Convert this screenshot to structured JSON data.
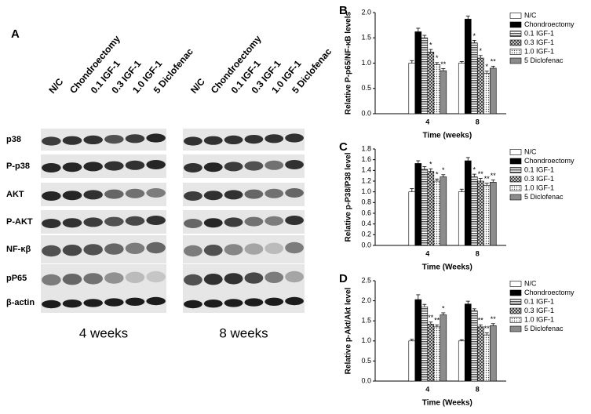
{
  "blot_panel": {
    "label": "A",
    "lanes": [
      "N/C",
      "Chondroectomy",
      "0.1 IGF-1",
      "0.3 IGF-1",
      "1.0 IGF-1",
      "5 Diclofenac"
    ],
    "rows": [
      "p38",
      "P-p38",
      "AKT",
      "P-AKT",
      "NF-κβ",
      "pP65",
      "β-actin"
    ],
    "groups": [
      "4 weeks",
      "8 weeks"
    ]
  },
  "chart_data": [
    {
      "type": "bar",
      "panel_label": "B",
      "ylabel": "Relative P-p65/NF-κB levels",
      "xlabel": "Time (weeks)",
      "categories": [
        "4",
        "8"
      ],
      "ylim": [
        0,
        2.0
      ],
      "yticks": [
        {
          "value": 0,
          "label": "0.0"
        },
        0.5,
        {
          "value": 1,
          "label": "1.0"
        },
        1.5,
        {
          "value": 2,
          "label": "2.0"
        }
      ],
      "series": [
        {
          "name": "N/C",
          "color": "#ffffff",
          "pattern": "solid",
          "values": [
            1.0,
            1.0
          ],
          "errors": [
            0.05,
            0.03
          ],
          "annotations": [
            null,
            null
          ]
        },
        {
          "name": "Chondroectomy",
          "color": "#000000",
          "pattern": "solid",
          "values": [
            1.62,
            1.87
          ],
          "errors": [
            0.07,
            0.06
          ],
          "annotations": [
            null,
            null
          ]
        },
        {
          "name": "0.1 IGF-1",
          "color": "#9a9a9a",
          "pattern": "hlines",
          "values": [
            1.5,
            1.4
          ],
          "errors": [
            0.05,
            0.05
          ],
          "annotations": [
            null,
            "*"
          ]
        },
        {
          "name": "0.3 IGF-1",
          "color": "#6a6a6a",
          "pattern": "cross",
          "values": [
            1.22,
            1.1
          ],
          "errors": [
            0.05,
            0.05
          ],
          "annotations": [
            "*",
            "*"
          ]
        },
        {
          "name": "1.0 IGF-1",
          "color": "#8a8a8a",
          "pattern": "dots",
          "values": [
            0.97,
            0.8
          ],
          "errors": [
            0.04,
            0.04
          ],
          "annotations": [
            "*",
            "*"
          ]
        },
        {
          "name": "5 Diclofenac",
          "color": "#8c8c8c",
          "pattern": "solid",
          "values": [
            0.85,
            0.9
          ],
          "errors": [
            0.04,
            0.04
          ],
          "annotations": [
            "**",
            "**"
          ]
        }
      ]
    },
    {
      "type": "bar",
      "panel_label": "C",
      "ylabel": "Relative p-P38/P38 level",
      "xlabel": "Time (Weeks)",
      "categories": [
        "4",
        "8"
      ],
      "ylim": [
        0,
        1.8
      ],
      "yticks": [
        {
          "value": 0,
          "label": "0.0"
        },
        0.2,
        0.4,
        0.6,
        0.8,
        {
          "value": 1,
          "label": "1.0"
        },
        1.2,
        1.4,
        1.6,
        1.8
      ],
      "series": [
        {
          "name": "N/C",
          "color": "#ffffff",
          "pattern": "solid",
          "values": [
            1.0,
            1.0
          ],
          "errors": [
            0.06,
            0.05
          ],
          "annotations": [
            null,
            null
          ]
        },
        {
          "name": "Chondroectomy",
          "color": "#000000",
          "pattern": "solid",
          "values": [
            1.53,
            1.58
          ],
          "errors": [
            0.05,
            0.06
          ],
          "annotations": [
            null,
            null
          ]
        },
        {
          "name": "0.1 IGF-1",
          "color": "#9a9a9a",
          "pattern": "hlines",
          "values": [
            1.42,
            1.28
          ],
          "errors": [
            0.05,
            0.05
          ],
          "annotations": [
            null,
            "*"
          ]
        },
        {
          "name": "0.3 IGF-1",
          "color": "#6a6a6a",
          "pattern": "cross",
          "values": [
            1.38,
            1.2
          ],
          "errors": [
            0.05,
            0.05
          ],
          "annotations": [
            "*",
            "**"
          ]
        },
        {
          "name": "1.0 IGF-1",
          "color": "#8a8a8a",
          "pattern": "dots",
          "values": [
            1.2,
            1.12
          ],
          "errors": [
            0.04,
            0.04
          ],
          "annotations": [
            "*",
            "**"
          ]
        },
        {
          "name": "5 Diclofenac",
          "color": "#8c8c8c",
          "pattern": "solid",
          "values": [
            1.28,
            1.18
          ],
          "errors": [
            0.04,
            0.04
          ],
          "annotations": [
            "*",
            "**"
          ]
        }
      ]
    },
    {
      "type": "bar",
      "panel_label": "D",
      "ylabel": "Relative p-Akt/Akt level",
      "xlabel": "Time (Weeks)",
      "categories": [
        "4",
        "8"
      ],
      "ylim": [
        0,
        2.5
      ],
      "yticks": [
        {
          "value": 0,
          "label": "0.0"
        },
        0.5,
        {
          "value": 1,
          "label": "1.0"
        },
        1.5,
        {
          "value": 2,
          "label": "2.0"
        },
        2.5
      ],
      "series": [
        {
          "name": "N/C",
          "color": "#ffffff",
          "pattern": "solid",
          "values": [
            1.0,
            1.0
          ],
          "errors": [
            0.04,
            0.03
          ],
          "annotations": [
            null,
            null
          ]
        },
        {
          "name": "Chondroectomy",
          "color": "#000000",
          "pattern": "solid",
          "values": [
            2.03,
            1.92
          ],
          "errors": [
            0.12,
            0.07
          ],
          "annotations": [
            null,
            null
          ]
        },
        {
          "name": "0.1 IGF-1",
          "color": "#9a9a9a",
          "pattern": "hlines",
          "values": [
            1.85,
            1.75
          ],
          "errors": [
            0.06,
            0.05
          ],
          "annotations": [
            null,
            null
          ]
        },
        {
          "name": "0.3 IGF-1",
          "color": "#6a6a6a",
          "pattern": "cross",
          "values": [
            1.42,
            1.35
          ],
          "errors": [
            0.05,
            0.05
          ],
          "annotations": [
            "**",
            "**"
          ]
        },
        {
          "name": "1.0 IGF-1",
          "color": "#8a8a8a",
          "pattern": "dots",
          "values": [
            1.35,
            1.15
          ],
          "errors": [
            0.05,
            0.05
          ],
          "annotations": [
            "**",
            "**"
          ]
        },
        {
          "name": "5 Diclofenac",
          "color": "#8c8c8c",
          "pattern": "solid",
          "values": [
            1.65,
            1.38
          ],
          "errors": [
            0.05,
            0.05
          ],
          "annotations": [
            "*",
            "**"
          ]
        }
      ]
    }
  ]
}
